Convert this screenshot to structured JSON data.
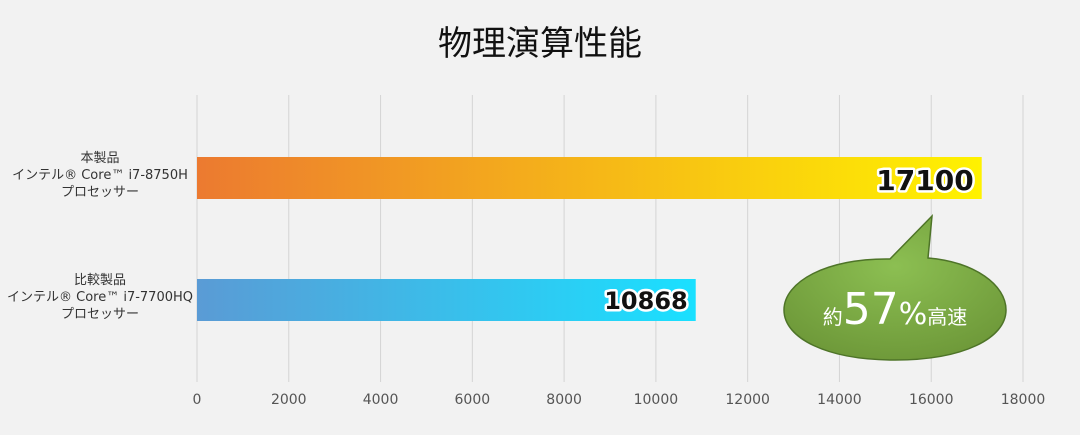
{
  "chart_data": {
    "type": "bar",
    "orientation": "horizontal",
    "title": "物理演算性能",
    "xlim": [
      0,
      18000
    ],
    "xticks": [
      0,
      2000,
      4000,
      6000,
      8000,
      10000,
      12000,
      14000,
      16000,
      18000
    ],
    "grid": true,
    "categories": [
      [
        "本製品",
        "インテル® Core™ i7-8750H",
        "プロセッサー"
      ],
      [
        "比較製品",
        "インテル® Core™ i7-7700HQ",
        "プロセッサー"
      ]
    ],
    "values": [
      17100,
      10868
    ],
    "data_labels": [
      "17100",
      "10868"
    ],
    "bar_colors": [
      [
        "#ec7a30",
        "#fff200"
      ],
      [
        "#5a9bd5",
        "#1ae0ff"
      ]
    ],
    "annotation": {
      "prefix": "約",
      "number": "57",
      "percent": "%",
      "suffix": "高速",
      "color": "#6f9a3a"
    }
  }
}
